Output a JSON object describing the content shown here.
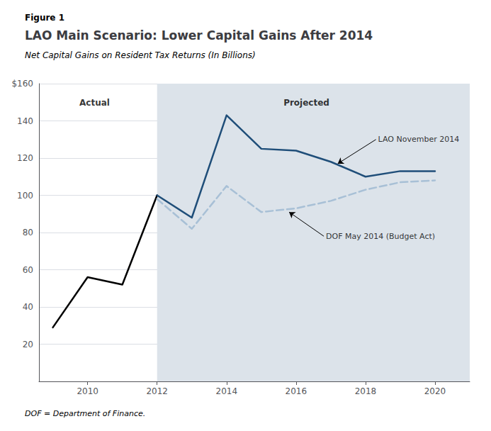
{
  "chart_data": {
    "type": "line",
    "figure_label": "Figure 1",
    "title": "LAO Main Scenario: Lower Capital Gains After 2014",
    "subtitle": "Net Capital Gains on Resident Tax Returns (In Billions)",
    "footnote": "DOF = Department of Finance.",
    "series": [
      {
        "x": [
          2009,
          2010,
          2011,
          2012
        ],
        "values": [
          29,
          56,
          52,
          100
        ],
        "color": "#000000"
      },
      {
        "x": [
          2012,
          2013,
          2014,
          2015,
          2016,
          2017,
          2018,
          2019,
          2020
        ],
        "values": [
          100,
          88,
          143,
          125,
          124,
          118,
          110,
          113,
          113
        ],
        "color": "#1f4e79"
      },
      {
        "x": [
          2012,
          2013,
          2014,
          2015,
          2016,
          2017,
          2018,
          2019,
          2020
        ],
        "values": [
          98,
          82,
          105,
          91,
          93,
          97,
          103,
          107,
          108
        ],
        "color": "#a8c0d6",
        "line_style": "dashed"
      }
    ],
    "xlim": [
      2008.6,
      2021.0
    ],
    "xticks": [
      2010,
      2012,
      2014,
      2016,
      2018,
      2020
    ],
    "ylim": [
      0,
      160
    ],
    "yticks": [
      20,
      40,
      60,
      80,
      100,
      120,
      140,
      {
        "value": 160,
        "label": "$160"
      }
    ],
    "grid": true,
    "shaded_span": [
      2012,
      2021.0
    ],
    "shade_color": "#dce3ea",
    "annotations": [
      {
        "text": "Actual",
        "x": 2010.2,
        "y": 152
      },
      {
        "text": "Projected",
        "x": 2016.3,
        "y": 152
      },
      {
        "text": "LAO November 2014",
        "x": 2018.3,
        "y": 130,
        "arrow_to": [
          2017.2,
          117
        ]
      },
      {
        "text": "DOF May 2014 (Budget Act)",
        "x": 2016.8,
        "y": 78,
        "arrow_to": [
          2015.8,
          91
        ]
      }
    ]
  }
}
